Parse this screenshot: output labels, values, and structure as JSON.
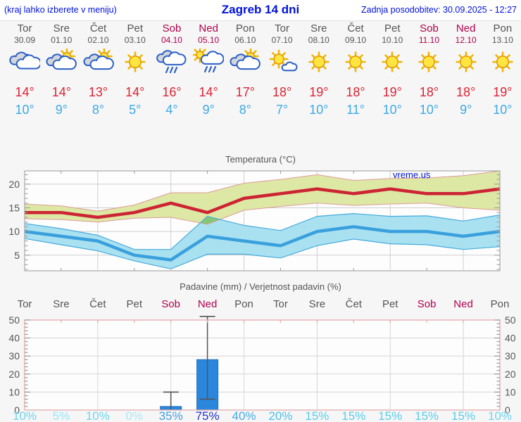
{
  "header": {
    "left_note": "(kraj lahko izberete v meniju)",
    "title": "Zagreb 14 dni",
    "updated_label": "Zadnja posodobitev: 30.09.2025 - 12:27"
  },
  "watermark": "vreme.us",
  "colors": {
    "header_text": "#0011d9",
    "weekday": "#555555",
    "weekend": "#b0004a",
    "temp_max_text": "#dc2434",
    "temp_min_text": "#3fa8e8",
    "temp_max_line": "#cd2434",
    "temp_max_band": "#dde8a4",
    "temp_max_band_edge": "#df9a9a",
    "temp_min_line": "#3aa0dc",
    "temp_min_band": "#a9e1f1",
    "temp_min_band_edge": "#45aadc",
    "band_overlap": "#82c878",
    "precip_bar": "#2b87dd",
    "precip_frame": "#e2a6a6",
    "grid": "#cfcfcf",
    "plot_bg": "#fdfdfd"
  },
  "days": [
    {
      "name": "Tor",
      "date": "30.09",
      "weekend": false,
      "icon": "cloudy",
      "tmax": "14°",
      "tmin": "10°",
      "prob": "10%",
      "prob_color": "#6ed6f0"
    },
    {
      "name": "Sre",
      "date": "01.10",
      "weekend": false,
      "icon": "partly-cloudy",
      "tmax": "14°",
      "tmin": "9°",
      "prob": "5%",
      "prob_color": "#9ae4f6"
    },
    {
      "name": "Čet",
      "date": "02.10",
      "weekend": false,
      "icon": "partly-cloudy",
      "tmax": "13°",
      "tmin": "8°",
      "prob": "10%",
      "prob_color": "#6ed6f0"
    },
    {
      "name": "Pet",
      "date": "03.10",
      "weekend": false,
      "icon": "sunny",
      "tmax": "14°",
      "tmin": "5°",
      "prob": "0%",
      "prob_color": "#a6e8f8"
    },
    {
      "name": "Sob",
      "date": "04.10",
      "weekend": true,
      "icon": "rain",
      "tmax": "16°",
      "tmin": "4°",
      "prob": "35%",
      "prob_color": "#459fe0"
    },
    {
      "name": "Ned",
      "date": "05.10",
      "weekend": true,
      "icon": "sun-rain",
      "tmax": "14°",
      "tmin": "9°",
      "prob": "75%",
      "prob_color": "#2633cc"
    },
    {
      "name": "Pon",
      "date": "06.10",
      "weekend": false,
      "icon": "partly-cloudy",
      "tmax": "17°",
      "tmin": "8°",
      "prob": "40%",
      "prob_color": "#47abe4"
    },
    {
      "name": "Tor",
      "date": "07.10",
      "weekend": false,
      "icon": "mostly-sunny",
      "tmax": "18°",
      "tmin": "7°",
      "prob": "20%",
      "prob_color": "#4cc0ea"
    },
    {
      "name": "Sre",
      "date": "08.10",
      "weekend": false,
      "icon": "sunny",
      "tmax": "19°",
      "tmin": "10°",
      "prob": "15%",
      "prob_color": "#58cdee"
    },
    {
      "name": "Čet",
      "date": "09.10",
      "weekend": false,
      "icon": "sunny",
      "tmax": "18°",
      "tmin": "11°",
      "prob": "15%",
      "prob_color": "#58cdee"
    },
    {
      "name": "Pet",
      "date": "10.10",
      "weekend": false,
      "icon": "sunny",
      "tmax": "19°",
      "tmin": "10°",
      "prob": "15%",
      "prob_color": "#58cdee"
    },
    {
      "name": "Sob",
      "date": "11.10",
      "weekend": true,
      "icon": "sunny",
      "tmax": "18°",
      "tmin": "10°",
      "prob": "15%",
      "prob_color": "#58cdee"
    },
    {
      "name": "Ned",
      "date": "12.10",
      "weekend": true,
      "icon": "sunny",
      "tmax": "18°",
      "tmin": "9°",
      "prob": "15%",
      "prob_color": "#58cdee"
    },
    {
      "name": "Pon",
      "date": "13.10",
      "weekend": false,
      "icon": "sunny",
      "tmax": "19°",
      "tmin": "10°",
      "prob": "10%",
      "prob_color": "#6ed6f0"
    }
  ],
  "chart_data": [
    {
      "type": "area",
      "title": "Temperatura (°C)",
      "xlabel": "",
      "ylabel": "°C",
      "ylim": [
        1.7,
        22.8
      ],
      "yticks": [
        5,
        10,
        15,
        20
      ],
      "grid": true,
      "x_categories": [
        "Tor 30.09",
        "Sre 01.10",
        "Čet 02.10",
        "Pet 03.10",
        "Sob 04.10",
        "Ned 05.10",
        "Pon 06.10",
        "Tor 07.10",
        "Sre 08.10",
        "Čet 09.10",
        "Pet 10.10",
        "Sob 11.10",
        "Ned 12.10",
        "Pon 13.10"
      ],
      "series": [
        {
          "name": "temp-max",
          "values": [
            14,
            14,
            13,
            14,
            16,
            14,
            17,
            18,
            19,
            18,
            19,
            18,
            18,
            19
          ]
        },
        {
          "name": "temp-max-range-upper",
          "values": [
            15.8,
            15.4,
            14.3,
            15.6,
            18.2,
            18.2,
            20.2,
            21.0,
            22.0,
            20.8,
            21.2,
            21.3,
            21.8,
            22.8
          ]
        },
        {
          "name": "temp-max-range-lower",
          "values": [
            12.7,
            12.5,
            12.0,
            12.8,
            13.0,
            11.5,
            14.5,
            15.3,
            16.0,
            15.5,
            15.8,
            16.0,
            15.0,
            14.5
          ]
        },
        {
          "name": "temp-min",
          "values": [
            10,
            9,
            8,
            5,
            4,
            9,
            8,
            7,
            10,
            11,
            10,
            10,
            9,
            10
          ]
        },
        {
          "name": "temp-min-range-upper",
          "values": [
            11.7,
            10.6,
            9.2,
            6.2,
            6.2,
            13.2,
            11.3,
            10.2,
            13.2,
            13.8,
            13.2,
            13.3,
            12.2,
            13.5
          ]
        },
        {
          "name": "temp-min-range-lower",
          "values": [
            8.5,
            7.2,
            5.9,
            3.8,
            2.1,
            5.2,
            5.2,
            4.4,
            7.0,
            8.4,
            7.4,
            7.2,
            6.2,
            6.8
          ]
        }
      ]
    },
    {
      "type": "bar",
      "title": "Padavine (mm) / Verjetnost padavin (%)",
      "ylim": [
        0,
        50
      ],
      "yticks": [
        0,
        10,
        20,
        30,
        40,
        50
      ],
      "grid": true,
      "categories": [
        "Tor",
        "Sre",
        "Čet",
        "Pet",
        "Sob",
        "Ned",
        "Pon",
        "Tor",
        "Sre",
        "Čet",
        "Pet",
        "Sob",
        "Ned",
        "Pon"
      ],
      "values": [
        0,
        0,
        0,
        0,
        2,
        28,
        0,
        0,
        0,
        0,
        0,
        0,
        0,
        0
      ],
      "whisker_low": [
        0,
        0,
        0,
        0,
        0,
        6,
        0,
        0,
        0,
        0,
        0,
        0,
        0,
        0
      ],
      "whisker_high": [
        0,
        0,
        0,
        0,
        10,
        52,
        0,
        0,
        0,
        0,
        0,
        0,
        0,
        0
      ],
      "probabilities_pct": [
        10,
        5,
        10,
        0,
        35,
        75,
        40,
        20,
        15,
        15,
        15,
        15,
        15,
        10
      ]
    }
  ]
}
